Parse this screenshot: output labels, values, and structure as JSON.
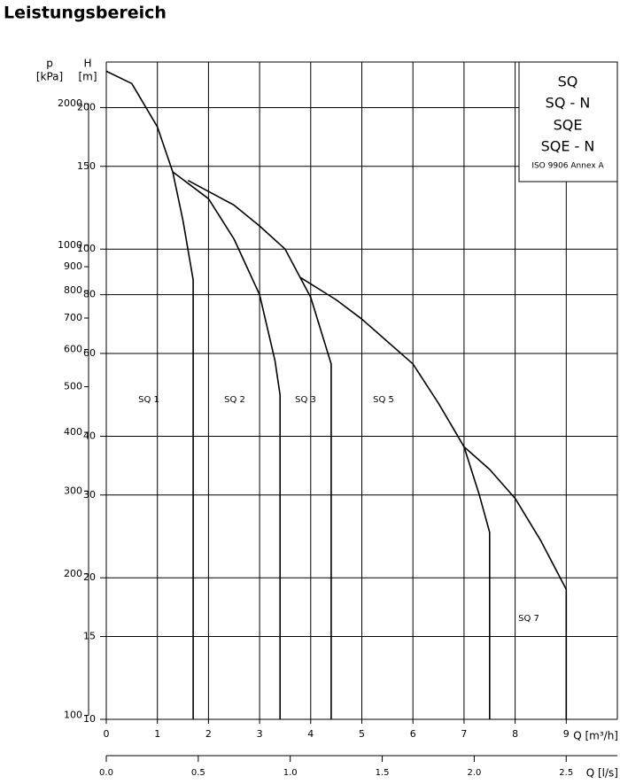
{
  "chart_data": {
    "type": "line",
    "title": "Leistungsbereich",
    "x_label": "Q [m³/h]",
    "x2_label": "Q [l/s]",
    "y_label": "H",
    "y_unit": "[m]",
    "y2_label": "p",
    "y2_unit": "[kPa]",
    "box_texts": [
      "SQ",
      "SQ - N",
      "SQE",
      "SQE - N",
      "ISO 9906 Annex A"
    ],
    "xlim": [
      0,
      10
    ],
    "xticks": [
      0,
      1,
      2,
      3,
      4,
      5,
      6,
      7,
      8,
      9
    ],
    "x2lim": [
      0,
      2.778
    ],
    "x2ticks": [
      {
        "value": 0,
        "label": "0.0"
      },
      0.5,
      {
        "value": 1,
        "label": "1.0"
      },
      1.5,
      {
        "value": 2,
        "label": "2.0"
      },
      2.5
    ],
    "ylim": [
      10,
      250
    ],
    "yscale": "log",
    "yticks": [
      10,
      15,
      20,
      30,
      40,
      60,
      80,
      100,
      150,
      200
    ],
    "y2lim": [
      98.1,
      2452.5
    ],
    "y2scale": "log",
    "y2ticks": [
      100,
      200,
      300,
      400,
      500,
      600,
      700,
      800,
      900,
      1000,
      2000
    ],
    "grid": true,
    "color": "#000000",
    "series": [
      {
        "name": "SQ 1",
        "x": [
          0,
          0.5,
          1,
          1.3,
          1.5,
          1.7,
          1.7
        ],
        "y": [
          239,
          225,
          182,
          146,
          115,
          86,
          10
        ]
      },
      {
        "name": "SQ 2",
        "x": [
          1.3,
          2,
          2.5,
          3,
          3.3,
          3.4,
          3.4
        ],
        "y": [
          146,
          128,
          105,
          80,
          58,
          49,
          10
        ]
      },
      {
        "name": "SQ 3",
        "x": [
          1.6,
          2.5,
          3,
          3.5,
          4,
          4.4,
          4.4
        ],
        "y": [
          140,
          124,
          112,
          100,
          79,
          57,
          10
        ]
      },
      {
        "name": "SQ 5",
        "x": [
          3.8,
          4.5,
          5,
          6,
          6.5,
          7,
          7.3,
          7.5,
          7.5
        ],
        "y": [
          87,
          78,
          71,
          57,
          47,
          38,
          30,
          25,
          10
        ]
      },
      {
        "name": "SQ 7",
        "x": [
          7,
          7.5,
          8,
          8.5,
          9,
          9
        ],
        "y": [
          38,
          34,
          29.5,
          24,
          18.9,
          10
        ]
      }
    ]
  }
}
